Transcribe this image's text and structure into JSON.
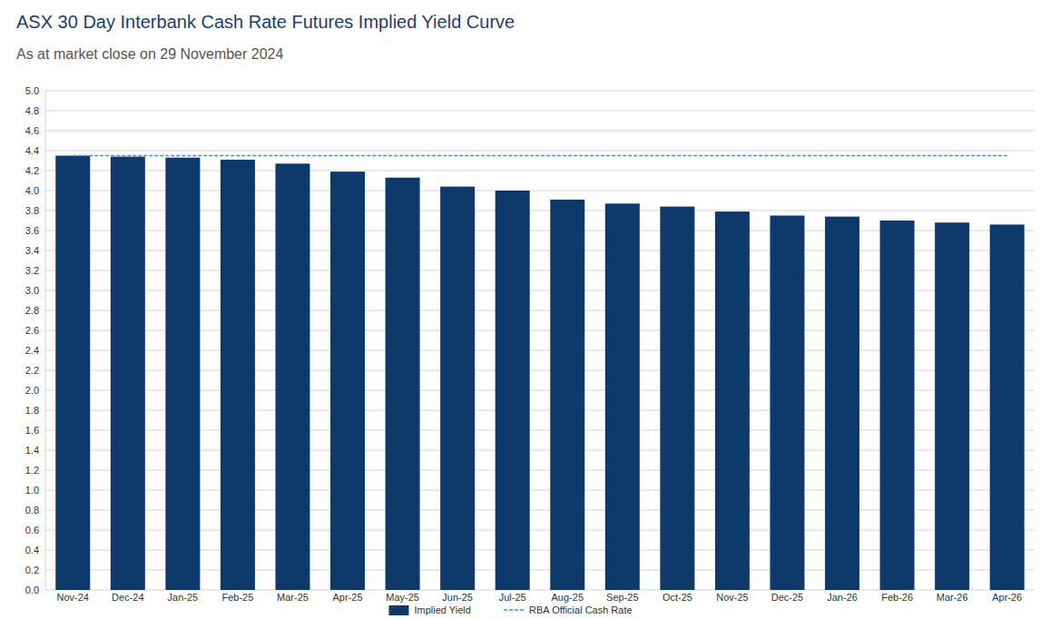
{
  "chart_data": {
    "type": "bar",
    "title": "ASX 30 Day Interbank Cash Rate Futures Implied Yield Curve",
    "subtitle": "As at market close on 29 November 2024",
    "categories": [
      "Nov-24",
      "Dec-24",
      "Jan-25",
      "Feb-25",
      "Mar-25",
      "Apr-25",
      "May-25",
      "Jun-25",
      "Jul-25",
      "Aug-25",
      "Sep-25",
      "Oct-25",
      "Nov-25",
      "Dec-25",
      "Jan-26",
      "Feb-26",
      "Mar-26",
      "Apr-26"
    ],
    "series": [
      {
        "name": "Implied Yield",
        "type": "bar",
        "color": "#0e3a6b",
        "values": [
          4.35,
          4.34,
          4.33,
          4.31,
          4.27,
          4.19,
          4.13,
          4.04,
          4.0,
          3.91,
          3.87,
          3.84,
          3.79,
          3.75,
          3.74,
          3.7,
          3.68,
          3.66
        ]
      },
      {
        "name": "RBA Official Cash Rate",
        "type": "line",
        "line_style": "dashed",
        "color": "#1a9fd6",
        "values": [
          4.35,
          4.35,
          4.35,
          4.35,
          4.35,
          4.35,
          4.35,
          4.35,
          4.35,
          4.35,
          4.35,
          4.35,
          4.35,
          4.35,
          4.35,
          4.35,
          4.35,
          4.35
        ]
      }
    ],
    "ylim": [
      0,
      5
    ],
    "yticks": [
      {
        "value": 0,
        "label": "0.0"
      },
      0.2,
      0.4,
      0.6,
      0.8,
      {
        "value": 1,
        "label": "1.0"
      },
      1.2,
      1.4,
      1.6,
      1.8,
      {
        "value": 2,
        "label": "2.0"
      },
      2.2,
      2.4,
      2.6,
      2.8,
      {
        "value": 3,
        "label": "3.0"
      },
      3.2,
      3.4,
      3.6,
      3.8,
      {
        "value": 4,
        "label": "4.0"
      },
      4.2,
      4.4,
      4.6,
      4.8,
      {
        "value": 5,
        "label": "5.0"
      }
    ],
    "grid": true,
    "legend": "bottom"
  }
}
